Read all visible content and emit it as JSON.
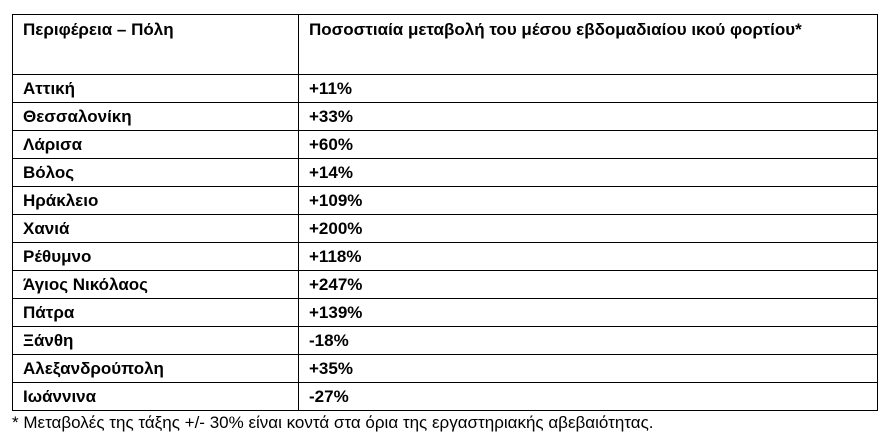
{
  "table": {
    "headers": [
      "Περιφέρεια – Πόλη",
      "Ποσοστιαία μεταβολή του μέσου εβδομαδιαίου ικού φορτίου*"
    ],
    "rows": [
      [
        "Αττική",
        "+11%"
      ],
      [
        "Θεσσαλονίκη",
        "+33%"
      ],
      [
        "Λάρισα",
        "+60%"
      ],
      [
        "Βόλος",
        "+14%"
      ],
      [
        "Ηράκλειο",
        "+109%"
      ],
      [
        "Χανιά",
        "+200%"
      ],
      [
        "Ρέθυμνο",
        "+118%"
      ],
      [
        "Άγιος Νικόλαος",
        "+247%"
      ],
      [
        "Πάτρα",
        "+139%"
      ],
      [
        "Ξάνθη",
        "-18%"
      ],
      [
        "Αλεξανδρούπολη",
        "+35%"
      ],
      [
        "Ιωάννινα",
        "-27%"
      ]
    ]
  },
  "footnote": "* Μεταβολές της τάξης +/- 30% είναι κοντά στα όρια της εργαστηριακής αβεβαιότητας."
}
